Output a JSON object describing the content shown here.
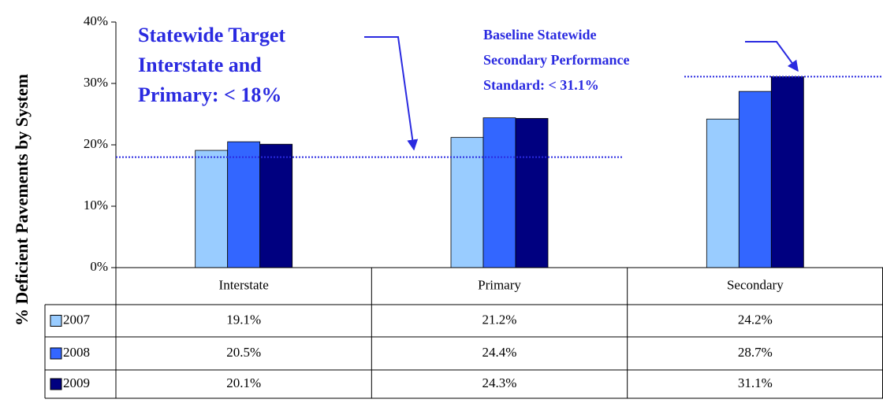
{
  "chart_data": {
    "type": "bar",
    "y_label": "% Deficient Pavements by System",
    "categories": [
      "Interstate",
      "Primary",
      "Secondary"
    ],
    "series": [
      {
        "name": "2007",
        "color": "#99ccff",
        "values": [
          19.1,
          21.2,
          24.2
        ],
        "value_labels": [
          "19.1%",
          "21.2%",
          "24.2%"
        ]
      },
      {
        "name": "2008",
        "color": "#3366ff",
        "values": [
          20.5,
          24.4,
          28.7
        ],
        "value_labels": [
          "20.5%",
          "24.4%",
          "28.7%"
        ]
      },
      {
        "name": "2009",
        "color": "#000080",
        "values": [
          20.1,
          24.3,
          31.1
        ],
        "value_labels": [
          "20.1%",
          "24.3%",
          "31.1%"
        ]
      }
    ],
    "ylim": [
      0,
      40
    ],
    "yticks": [
      {
        "value": 0,
        "label": "0%"
      },
      {
        "value": 10,
        "label": "10%"
      },
      {
        "value": 20,
        "label": "20%"
      },
      {
        "value": 30,
        "label": "30%"
      },
      {
        "value": 40,
        "label": "40%"
      }
    ],
    "reference_lines": [
      {
        "value": 18,
        "color": "#2a2ae0",
        "label_lines": [
          "Statewide Target",
          "Interstate and",
          "Primary: < 18%"
        ]
      },
      {
        "value": 31.1,
        "color": "#2a2ae0",
        "label_lines": [
          "Baseline Statewide",
          "Secondary Performance",
          "Standard: < 31.1%"
        ]
      }
    ]
  }
}
